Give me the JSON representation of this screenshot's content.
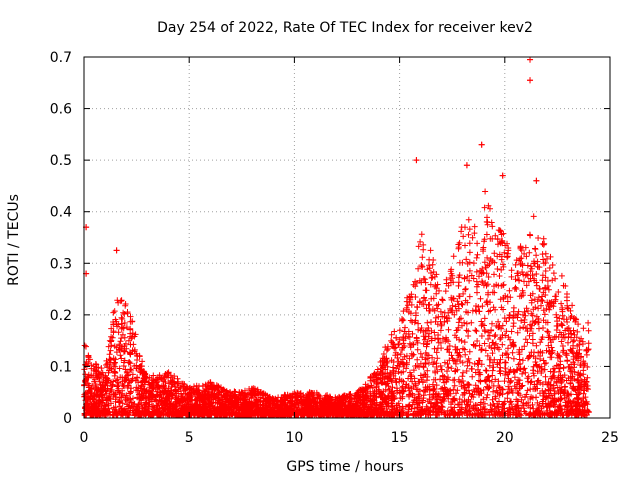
{
  "chart_data": {
    "type": "scatter",
    "title": "Day 254 of 2022, Rate Of TEC Index for receiver kev2",
    "xlabel": "GPS time / hours",
    "ylabel": "ROTI / TECUs",
    "xlim": [
      0,
      25
    ],
    "ylim": [
      0,
      0.7
    ],
    "xticks": [
      0,
      5,
      10,
      15,
      20,
      25
    ],
    "yticks": [
      0,
      0.1,
      0.2,
      0.3,
      0.4,
      0.5,
      0.6,
      0.7
    ],
    "xtick_labels": [
      "0",
      "5",
      "10",
      "15",
      "20",
      "25"
    ],
    "ytick_labels": [
      "0",
      "0.1",
      "0.2",
      "0.3",
      "0.4",
      "0.5",
      "0.6",
      "0.7"
    ],
    "grid": true,
    "marker": "+",
    "color": "#ff0000",
    "series": [
      {
        "name": "ROTI",
        "notable_points": [
          {
            "x": 0.1,
            "y": 0.37
          },
          {
            "x": 0.1,
            "y": 0.28
          },
          {
            "x": 1.55,
            "y": 0.325
          },
          {
            "x": 15.8,
            "y": 0.5
          },
          {
            "x": 18.9,
            "y": 0.53
          },
          {
            "x": 19.9,
            "y": 0.47
          },
          {
            "x": 21.2,
            "y": 0.695
          },
          {
            "x": 21.2,
            "y": 0.655
          },
          {
            "x": 18.2,
            "y": 0.49
          },
          {
            "x": 21.5,
            "y": 0.46
          }
        ],
        "envelope": [
          {
            "x": 0.0,
            "y": 0.15
          },
          {
            "x": 0.5,
            "y": 0.11
          },
          {
            "x": 1.0,
            "y": 0.09
          },
          {
            "x": 1.5,
            "y": 0.24
          },
          {
            "x": 2.0,
            "y": 0.24
          },
          {
            "x": 2.5,
            "y": 0.16
          },
          {
            "x": 3.0,
            "y": 0.08
          },
          {
            "x": 4.0,
            "y": 0.09
          },
          {
            "x": 5.0,
            "y": 0.06
          },
          {
            "x": 6.0,
            "y": 0.07
          },
          {
            "x": 7.0,
            "y": 0.05
          },
          {
            "x": 8.0,
            "y": 0.06
          },
          {
            "x": 9.0,
            "y": 0.04
          },
          {
            "x": 10.0,
            "y": 0.05
          },
          {
            "x": 11.0,
            "y": 0.05
          },
          {
            "x": 12.0,
            "y": 0.04
          },
          {
            "x": 13.0,
            "y": 0.05
          },
          {
            "x": 14.0,
            "y": 0.1
          },
          {
            "x": 14.5,
            "y": 0.16
          },
          {
            "x": 15.0,
            "y": 0.18
          },
          {
            "x": 15.5,
            "y": 0.26
          },
          {
            "x": 16.0,
            "y": 0.36
          },
          {
            "x": 16.5,
            "y": 0.33
          },
          {
            "x": 17.0,
            "y": 0.25
          },
          {
            "x": 17.5,
            "y": 0.3
          },
          {
            "x": 18.0,
            "y": 0.4
          },
          {
            "x": 18.5,
            "y": 0.38
          },
          {
            "x": 19.0,
            "y": 0.45
          },
          {
            "x": 19.5,
            "y": 0.38
          },
          {
            "x": 20.0,
            "y": 0.36
          },
          {
            "x": 20.5,
            "y": 0.3
          },
          {
            "x": 21.0,
            "y": 0.37
          },
          {
            "x": 21.5,
            "y": 0.4
          },
          {
            "x": 22.0,
            "y": 0.33
          },
          {
            "x": 22.5,
            "y": 0.3
          },
          {
            "x": 23.0,
            "y": 0.25
          },
          {
            "x": 23.5,
            "y": 0.18
          },
          {
            "x": 24.0,
            "y": 0.19
          }
        ]
      }
    ]
  }
}
